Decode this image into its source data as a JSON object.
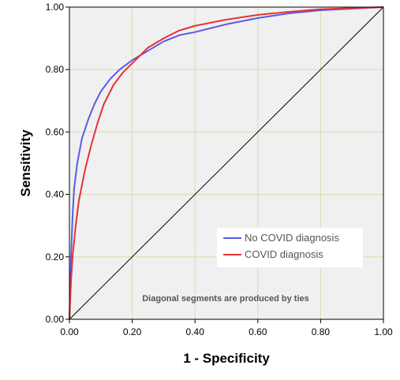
{
  "chart_data": {
    "type": "line",
    "title": "",
    "xlabel": "1 - Specificity",
    "ylabel": "Sensitivity",
    "xlim": [
      0,
      1
    ],
    "ylim": [
      0,
      1
    ],
    "xticks": [
      "0.00",
      "0.20",
      "0.40",
      "0.60",
      "0.80",
      "1.00"
    ],
    "yticks": [
      "0.00",
      "0.20",
      "0.40",
      "0.60",
      "0.80",
      "1.00"
    ],
    "grid": true,
    "legend_position": "bottom-right",
    "annotation": "Diagonal segments are produced by ties",
    "reference_line": [
      [
        0,
        0
      ],
      [
        1,
        1
      ]
    ],
    "series": [
      {
        "name": "No COVID diagnosis",
        "color": "#5a5ae6",
        "points": [
          [
            0,
            0
          ],
          [
            0.005,
            0.2
          ],
          [
            0.01,
            0.33
          ],
          [
            0.015,
            0.42
          ],
          [
            0.025,
            0.5
          ],
          [
            0.04,
            0.58
          ],
          [
            0.06,
            0.64
          ],
          [
            0.08,
            0.69
          ],
          [
            0.1,
            0.73
          ],
          [
            0.13,
            0.77
          ],
          [
            0.16,
            0.8
          ],
          [
            0.2,
            0.83
          ],
          [
            0.25,
            0.86
          ],
          [
            0.3,
            0.89
          ],
          [
            0.35,
            0.91
          ],
          [
            0.4,
            0.92
          ],
          [
            0.5,
            0.945
          ],
          [
            0.6,
            0.965
          ],
          [
            0.7,
            0.98
          ],
          [
            0.8,
            0.99
          ],
          [
            0.9,
            0.995
          ],
          [
            1,
            1
          ]
        ]
      },
      {
        "name": "COVID diagnosis",
        "color": "#e63232",
        "points": [
          [
            0,
            0
          ],
          [
            0.005,
            0.12
          ],
          [
            0.01,
            0.2
          ],
          [
            0.02,
            0.3
          ],
          [
            0.03,
            0.38
          ],
          [
            0.05,
            0.48
          ],
          [
            0.07,
            0.56
          ],
          [
            0.09,
            0.63
          ],
          [
            0.11,
            0.69
          ],
          [
            0.14,
            0.75
          ],
          [
            0.17,
            0.79
          ],
          [
            0.2,
            0.82
          ],
          [
            0.25,
            0.87
          ],
          [
            0.3,
            0.9
          ],
          [
            0.35,
            0.925
          ],
          [
            0.4,
            0.94
          ],
          [
            0.5,
            0.96
          ],
          [
            0.6,
            0.975
          ],
          [
            0.7,
            0.985
          ],
          [
            0.8,
            0.993
          ],
          [
            0.9,
            0.997
          ],
          [
            1,
            1
          ]
        ]
      }
    ]
  }
}
